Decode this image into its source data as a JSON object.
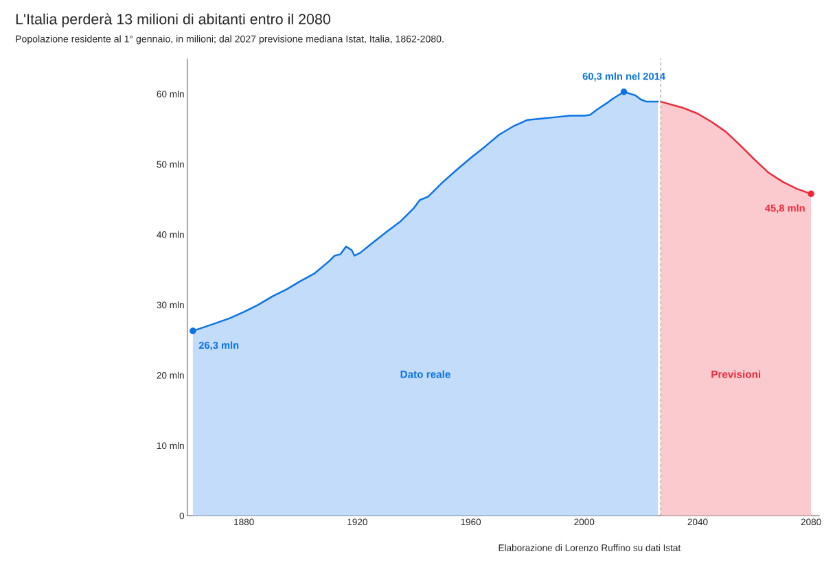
{
  "chart_data": {
    "type": "area",
    "title": "L'Italia perderà 13 milioni di abitanti entro il 2080",
    "subtitle": "Popolazione residente al 1° gennaio, in milioni; dal 2027 previsione mediana Istat, Italia, 1862-2080.",
    "series": [
      {
        "name": "Dato reale",
        "color": "#0a74e6",
        "x": [
          1862,
          1870,
          1875,
          1880,
          1885,
          1890,
          1895,
          1900,
          1905,
          1910,
          1912,
          1914,
          1916,
          1918,
          1919,
          1921,
          1925,
          1930,
          1935,
          1940,
          1942,
          1945,
          1950,
          1955,
          1960,
          1965,
          1970,
          1975,
          1980,
          1985,
          1990,
          1995,
          2000,
          2002,
          2005,
          2008,
          2010,
          2014,
          2018,
          2020,
          2022,
          2026
        ],
        "values": [
          26.3,
          27.4,
          28.1,
          29.0,
          30.0,
          31.2,
          32.2,
          33.4,
          34.5,
          36.2,
          37.0,
          37.2,
          38.3,
          37.8,
          37.0,
          37.4,
          38.7,
          40.3,
          41.8,
          43.8,
          44.9,
          45.4,
          47.4,
          49.2,
          50.9,
          52.5,
          54.2,
          55.4,
          56.3,
          56.5,
          56.7,
          56.9,
          56.9,
          57.0,
          57.9,
          58.7,
          59.3,
          60.3,
          59.8,
          59.2,
          58.9,
          58.9
        ]
      },
      {
        "name": "Previsioni",
        "color": "#ee2a3a",
        "x": [
          2027,
          2035,
          2040,
          2045,
          2050,
          2055,
          2060,
          2065,
          2070,
          2075,
          2080
        ],
        "values": [
          58.9,
          58.0,
          57.2,
          56.0,
          54.6,
          52.7,
          50.7,
          48.8,
          47.5,
          46.5,
          45.8
        ]
      }
    ],
    "xlim": [
      1860,
      2083
    ],
    "ylim": [
      0,
      65
    ],
    "xticks": [
      1880,
      1920,
      1960,
      2000,
      2040,
      2080
    ],
    "yticks": [
      0,
      {
        "value": 10,
        "label": "10 mln"
      },
      {
        "value": 20,
        "label": "20 mln"
      },
      {
        "value": 30,
        "label": "30 mln"
      },
      {
        "value": 40,
        "label": "40 mln"
      },
      {
        "value": 50,
        "label": "50 mln"
      },
      {
        "value": 60,
        "label": "60 mln"
      }
    ],
    "ref_lines": [
      {
        "axis": "x",
        "value": 2027,
        "color": "#999999",
        "line_style": "dashed"
      }
    ],
    "annotations": [
      {
        "text": "26,3 mln",
        "x": 1862,
        "y": 26.3
      },
      {
        "text": "60,3 mln nel 2014",
        "x": 2014,
        "y": 60.3
      },
      {
        "text": "45,8 mln",
        "x": 2080,
        "y": 45.8
      },
      "Elaborazione di Lorenzo Ruffino su dati Istat"
    ]
  }
}
